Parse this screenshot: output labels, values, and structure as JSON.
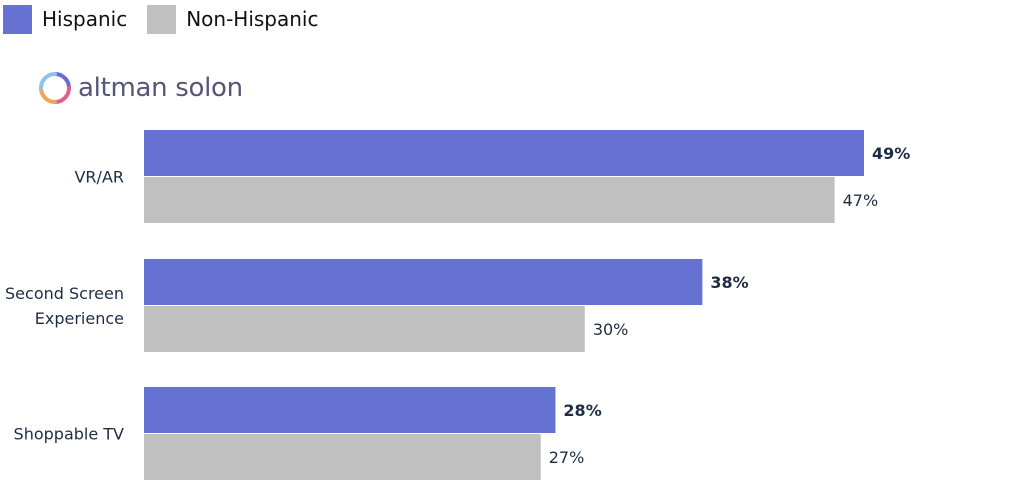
{
  "legend": [
    {
      "label": "Hispanic",
      "color": "#6672d2"
    },
    {
      "label": "Non-Hispanic",
      "color": "#c0c0c0"
    }
  ],
  "logo": {
    "text": "altman solon",
    "icon": "altman-solon-ring-icon"
  },
  "chart_data": {
    "type": "bar",
    "orientation": "horizontal",
    "categories": [
      "VR/AR",
      "Second Screen Experience",
      "Shoppable TV"
    ],
    "series": [
      {
        "name": "Hispanic",
        "values": [
          49,
          38,
          28
        ],
        "labels": [
          "49%",
          "38%",
          "28%"
        ],
        "color": "#6672d2",
        "bold_labels": true
      },
      {
        "name": "Non-Hispanic",
        "values": [
          47,
          30,
          27
        ],
        "labels": [
          "47%",
          "30%",
          "27%"
        ],
        "color": "#c0c0c0",
        "bold_labels": false
      }
    ],
    "xlim": [
      0,
      49
    ],
    "grid": false,
    "legend_position": "top-left"
  }
}
